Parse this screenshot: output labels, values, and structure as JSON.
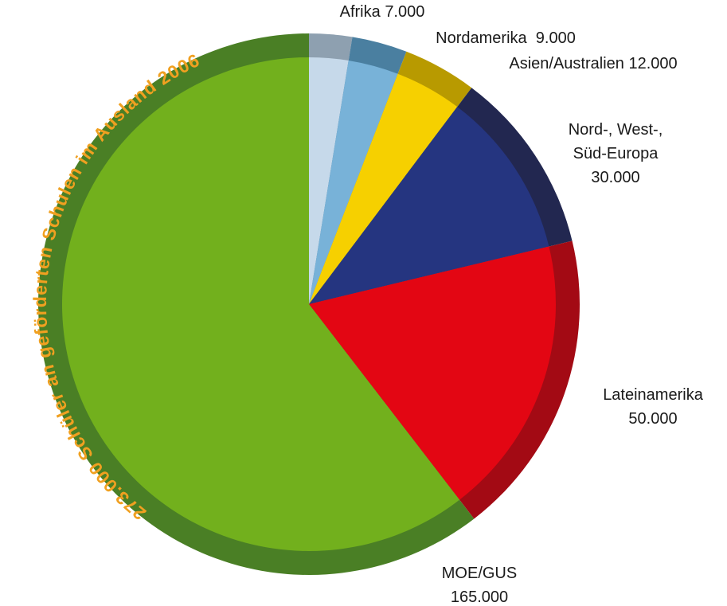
{
  "chart_data": {
    "type": "pie",
    "title": "273.000 Schüler an geförderten Schulen im Ausland 2006",
    "categories": [
      "Afrika",
      "Nordamerika",
      "Asien/Australien",
      "Nord-, West-, Süd-Europa",
      "Lateinamerika",
      "MOE/GUS"
    ],
    "values": [
      7000,
      9000,
      12000,
      30000,
      50000,
      165000
    ],
    "value_labels": [
      "7.000",
      "9.000",
      "12.000",
      "30.000",
      "50.000",
      "165.000"
    ],
    "colors": [
      "#c6d9ea",
      "#78b2d8",
      "#f6d000",
      "#253580",
      "#e30613",
      "#72b01d"
    ],
    "ring_colors": [
      "#8ea0b0",
      "#4a7fa0",
      "#b89a00",
      "#222750",
      "#a30a14",
      "#4a7f25"
    ]
  }
}
